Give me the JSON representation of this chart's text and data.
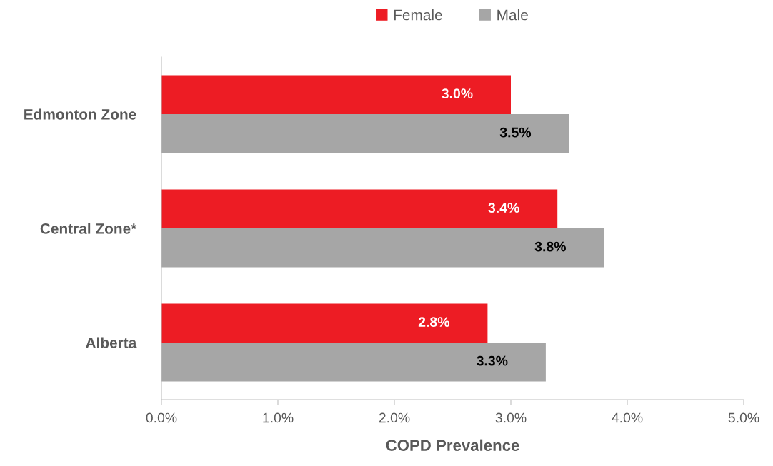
{
  "chart_data": {
    "type": "bar",
    "orientation": "horizontal",
    "xlabel": "COPD Prevalence",
    "categories": [
      "Edmonton Zone",
      "Central Zone*",
      "Alberta"
    ],
    "series": [
      {
        "name": "Female",
        "color": "#ed1c24",
        "values": [
          3.0,
          3.4,
          2.8
        ],
        "value_labels": [
          "3.0%",
          "3.4%",
          "2.8%"
        ]
      },
      {
        "name": "Male",
        "color": "#a6a6a6",
        "values": [
          3.5,
          3.8,
          3.3
        ],
        "value_labels": [
          "3.5%",
          "3.8%",
          "3.3%"
        ]
      }
    ],
    "xlim": [
      0,
      5
    ],
    "xticks": [
      {
        "value": 0,
        "label": "0.0%"
      },
      {
        "value": 1,
        "label": "1.0%"
      },
      {
        "value": 2,
        "label": "2.0%"
      },
      {
        "value": 3,
        "label": "3.0%"
      },
      {
        "value": 4,
        "label": "4.0%"
      },
      {
        "value": 5,
        "label": "5.0%"
      }
    ],
    "grid": false,
    "legend": "top"
  }
}
